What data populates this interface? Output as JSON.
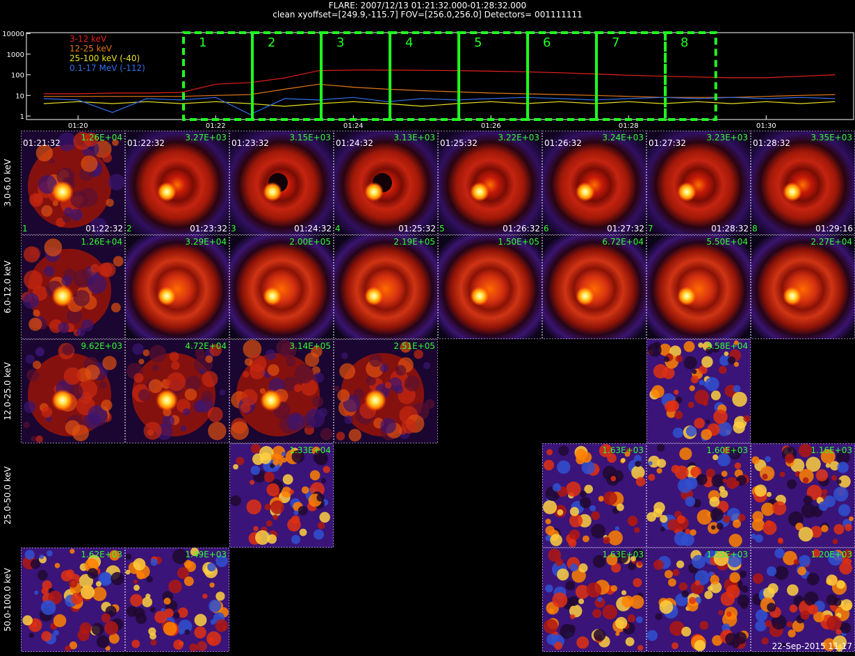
{
  "header": {
    "title": "FLARE: 2007/12/13 01:21:32.000-01:28:32.000",
    "subtitle": "clean   xyoffset=[249.9,-115.7]   FOV=[256.0,256.0]   Detectors= 001111111"
  },
  "chart_data": {
    "type": "line",
    "log_y": true,
    "x": [
      19.5,
      20,
      20.5,
      21,
      21.5,
      22,
      22.5,
      23,
      23.5,
      24,
      24.5,
      25,
      25.5,
      26,
      26.5,
      27,
      27.5,
      28,
      28.5,
      29,
      29.5,
      30,
      30.5,
      31
    ],
    "xlim": [
      19.25,
      31.27
    ],
    "xticks": [
      {
        "value": 20,
        "label": "01:20"
      },
      {
        "value": 22,
        "label": "01:22"
      },
      {
        "value": 24,
        "label": "01:24"
      },
      {
        "value": 26,
        "label": "01:26"
      },
      {
        "value": 28,
        "label": "01:28"
      },
      {
        "value": 30,
        "label": "01:30"
      }
    ],
    "ylim": [
      0.68,
      11000
    ],
    "yticks": [
      1,
      10,
      100,
      1000,
      10000
    ],
    "series": [
      {
        "name": "3-12 keV",
        "color": "#e8201c",
        "values": [
          12,
          12,
          13,
          13,
          14,
          35,
          42,
          70,
          160,
          170,
          168,
          165,
          160,
          150,
          140,
          125,
          110,
          95,
          85,
          78,
          72,
          72,
          85,
          100
        ]
      },
      {
        "name": "12-25 keV",
        "color": "#e87818",
        "values": [
          9,
          9,
          9,
          9,
          9,
          10,
          11,
          20,
          35,
          25,
          20,
          17,
          15,
          13,
          12,
          11,
          10,
          9,
          8,
          8,
          8,
          9,
          10,
          11
        ]
      },
      {
        "name": "25-100 keV (-40)",
        "color": "#e8e020",
        "values": [
          4,
          5,
          4,
          5,
          4,
          5,
          4,
          3,
          4,
          5,
          4,
          3,
          4,
          5,
          4,
          5,
          4,
          5,
          4,
          5,
          4,
          5,
          4,
          5
        ]
      },
      {
        "name": "0.1-17 MeV (-112)",
        "color": "#3070f0",
        "values": [
          7,
          6,
          1.5,
          7,
          6,
          8,
          1.2,
          7,
          6,
          8,
          5,
          7,
          6,
          7,
          8,
          7,
          6,
          7,
          8,
          7,
          8,
          7,
          8,
          7
        ]
      }
    ],
    "intervals": [
      {
        "label": "1",
        "start": 21.533,
        "end": 22.533
      },
      {
        "label": "2",
        "start": 22.533,
        "end": 23.533
      },
      {
        "label": "3",
        "start": 23.533,
        "end": 24.533
      },
      {
        "label": "4",
        "start": 24.533,
        "end": 25.533
      },
      {
        "label": "5",
        "start": 25.533,
        "end": 26.533
      },
      {
        "label": "6",
        "start": 26.533,
        "end": 27.533
      },
      {
        "label": "7",
        "start": 27.533,
        "end": 28.533
      },
      {
        "label": "8",
        "start": 28.533,
        "end": 29.267
      }
    ],
    "interval_color": "#20ff20"
  },
  "panels": {
    "rows": [
      {
        "label": "3.0-6.0 keV",
        "cells": [
          {
            "max": "1.26E+04",
            "start": "01:21:32",
            "end": "01:22:32",
            "index": "1"
          },
          {
            "max": "3.27E+03",
            "start": "01:22:32",
            "end": "01:23:32",
            "index": "2"
          },
          {
            "max": "3.15E+03",
            "start": "01:23:32",
            "end": "01:24:32",
            "index": "3"
          },
          {
            "max": "3.13E+03",
            "start": "01:24:32",
            "end": "01:25:32",
            "index": "4"
          },
          {
            "max": "3.22E+03",
            "start": "01:25:32",
            "end": "01:26:32",
            "index": "5"
          },
          {
            "max": "3.24E+03",
            "start": "01:26:32",
            "end": "01:27:32",
            "index": "6"
          },
          {
            "max": "3.23E+03",
            "start": "01:27:32",
            "end": "01:28:32",
            "index": "7"
          },
          {
            "max": "3.35E+03",
            "start": "01:28:32",
            "end": "01:29:16",
            "index": "8"
          }
        ]
      },
      {
        "label": "6.0-12.0 keV",
        "cells": [
          {
            "max": "1.26E+04"
          },
          {
            "max": "3.29E+04"
          },
          {
            "max": "2.00E+05"
          },
          {
            "max": "2.19E+05"
          },
          {
            "max": "1.50E+05"
          },
          {
            "max": "6.72E+04"
          },
          {
            "max": "5.50E+04"
          },
          {
            "max": "2.27E+04"
          }
        ]
      },
      {
        "label": "12.0-25.0 keV",
        "cells": [
          {
            "max": "9.62E+03"
          },
          {
            "max": "4.72E+04"
          },
          {
            "max": "3.14E+05"
          },
          {
            "max": "2.51E+05"
          },
          null,
          null,
          {
            "max": "3.58E+04"
          },
          null
        ]
      },
      {
        "label": "25.0-50.0 keV",
        "cells": [
          null,
          null,
          {
            "max": "1.33E+04"
          },
          null,
          null,
          {
            "max": "1.63E+03"
          },
          {
            "max": "1.60E+03"
          },
          {
            "max": "1.16E+03"
          }
        ]
      },
      {
        "label": "50.0-100.0 keV",
        "cells": [
          {
            "max": "1.62E+03"
          },
          {
            "max": "1.49E+03"
          },
          null,
          null,
          null,
          {
            "max": "1.63E+03"
          },
          {
            "max": "1.55E+03"
          },
          {
            "max": "1.20E+03"
          }
        ]
      }
    ]
  },
  "footer": "22-Sep-2015 11:17"
}
